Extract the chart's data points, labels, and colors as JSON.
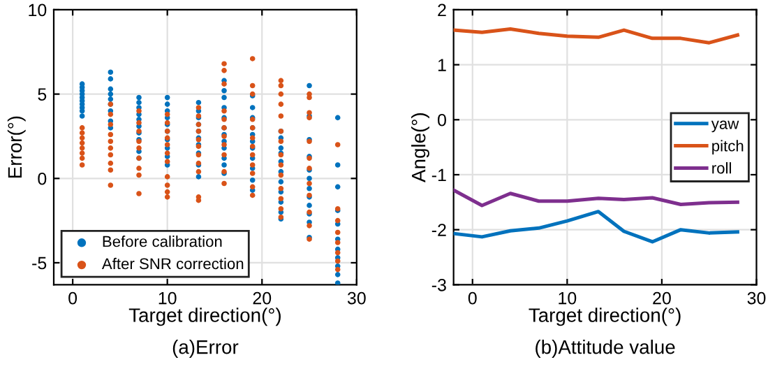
{
  "chart_data": [
    {
      "type": "scatter",
      "xlabel": "Target direction(°)",
      "ylabel": "Error(°)",
      "annotations": [
        "(a)Error"
      ],
      "xlim": [
        -2,
        30
      ],
      "ylim": [
        -6.3,
        10
      ],
      "xticks": [
        0,
        10,
        20,
        30
      ],
      "yticks": [
        -5,
        0,
        5,
        10
      ],
      "grid": true,
      "legend": "bottom left",
      "marker": "circle",
      "series": [
        {
          "name": "Before calibration",
          "color": "#0072bd",
          "x": [
            1,
            1,
            1,
            1,
            1,
            1,
            1,
            1,
            1,
            1,
            4,
            4,
            4,
            4,
            4,
            4,
            4,
            4,
            4,
            7,
            7,
            7,
            7,
            7,
            7,
            7,
            7,
            7,
            7,
            10,
            10,
            10,
            10,
            10,
            10,
            10,
            10,
            10,
            10,
            13.3,
            13.3,
            13.3,
            13.3,
            13.3,
            13.3,
            13.3,
            13.3,
            13.3,
            13.3,
            16,
            16,
            16,
            16,
            16,
            16,
            16,
            16,
            16,
            16,
            16,
            16,
            19,
            19,
            19,
            19,
            19,
            19,
            19,
            19,
            19,
            19,
            19,
            22,
            22,
            22,
            22,
            22,
            22,
            22,
            22,
            22,
            22,
            22,
            25,
            25,
            25,
            25,
            25,
            25,
            25,
            25,
            25,
            25,
            25,
            25,
            28,
            28,
            28,
            28,
            28,
            28,
            28,
            28,
            28,
            28,
            28
          ],
          "values": [
            5.6,
            5.4,
            5.2,
            5.0,
            4.8,
            4.6,
            4.4,
            4.2,
            4.0,
            3.7,
            6.3,
            5.9,
            5.3,
            5.0,
            4.7,
            4.4,
            4.0,
            3.4,
            3.0,
            4.8,
            4.5,
            4.2,
            3.8,
            3.5,
            3.1,
            2.7,
            2.3,
            1.6,
            1.2,
            4.8,
            4.4,
            4.0,
            3.6,
            3.2,
            2.8,
            2.3,
            1.8,
            1.3,
            0.8,
            4.5,
            4.0,
            3.6,
            3.2,
            2.8,
            2.4,
            2.0,
            1.5,
            0.8,
            0.1,
            5.8,
            5.2,
            4.8,
            4.2,
            3.6,
            3.0,
            2.6,
            2.2,
            1.8,
            1.2,
            0.8,
            0.3,
            4.9,
            4.2,
            3.6,
            3.0,
            2.6,
            2.2,
            1.8,
            1.2,
            0.6,
            -0.1,
            -0.7,
            2.8,
            2.4,
            1.8,
            1.5,
            1.0,
            0.4,
            -0.2,
            -0.8,
            -1.4,
            -2.0,
            -2.4,
            5.5,
            3.7,
            2.3,
            1.3,
            0.5,
            0,
            -0.6,
            -1.1,
            -1.6,
            -2.1,
            -2.6,
            -3.5,
            3.6,
            0.8,
            -0.5,
            -1.9,
            -2.7,
            -3.6,
            -4.2,
            -4.7,
            -5.2,
            -5.7,
            -6.2
          ]
        },
        {
          "name": "After SNR correction",
          "color": "#d95319",
          "x": [
            1,
            1,
            1,
            1,
            1,
            1,
            1,
            1,
            4,
            4,
            4,
            4,
            4,
            4,
            4,
            4,
            4,
            4,
            7,
            7,
            7,
            7,
            7,
            7,
            7,
            7,
            7,
            10,
            10,
            10,
            10,
            10,
            10,
            10,
            10,
            10,
            10,
            10,
            13.3,
            13.3,
            13.3,
            13.3,
            13.3,
            13.3,
            13.3,
            13.3,
            13.3,
            13.3,
            13.3,
            16,
            16,
            16,
            16,
            16,
            16,
            16,
            16,
            16,
            16,
            16,
            19,
            19,
            19,
            19,
            19,
            19,
            19,
            19,
            19,
            19,
            19,
            19,
            22,
            22,
            22,
            22,
            22,
            22,
            22,
            22,
            22,
            22,
            22,
            22,
            22,
            22,
            25,
            25,
            25,
            25,
            25,
            25,
            25,
            25,
            25,
            25,
            25,
            25,
            28,
            28,
            28,
            28,
            28,
            28,
            28,
            28
          ],
          "values": [
            3.0,
            2.7,
            2.4,
            2.1,
            1.8,
            1.5,
            1.2,
            0.8,
            4.4,
            3.8,
            3.2,
            2.6,
            2.2,
            1.8,
            1.4,
            0.9,
            0.5,
            -0.4,
            4.0,
            3.3,
            2.8,
            2.2,
            1.8,
            1.2,
            0.6,
            0.2,
            -0.9,
            3.8,
            3.3,
            2.8,
            2.4,
            2.0,
            1.5,
            1.0,
            0.1,
            -0.4,
            -0.8,
            -1.1,
            4.2,
            3.7,
            3.2,
            2.8,
            2.3,
            1.9,
            1.4,
            0.9,
            0.4,
            -1.1,
            -1.3,
            6.8,
            6.4,
            5.6,
            4.0,
            3.5,
            3.0,
            2.5,
            2.0,
            1.4,
            0.4,
            -0.3,
            7.1,
            5.5,
            5.0,
            3.5,
            3.0,
            2.4,
            1.9,
            1.4,
            0.8,
            0.3,
            -0.5,
            -1.0,
            5.8,
            5.5,
            5.0,
            4.4,
            3.7,
            2.8,
            2.2,
            1.4,
            0.8,
            0.2,
            -0.6,
            -1.2,
            -1.8,
            -2.3,
            5.0,
            4.8,
            3.9,
            3.6,
            2.2,
            1.2,
            0.6,
            -0.3,
            -1.0,
            -2.0,
            -2.8,
            -3.6,
            2.0,
            -1.8,
            -2.5,
            -3.2,
            -3.8,
            -4.4,
            -4.9,
            -5.4
          ]
        }
      ]
    },
    {
      "type": "line",
      "xlabel": "Target direction(°)",
      "ylabel": "Angle(°)",
      "annotations": [
        "(b)Attitude value"
      ],
      "xlim": [
        -2,
        30
      ],
      "ylim": [
        -3,
        2
      ],
      "xticks": [
        0,
        10,
        20,
        30
      ],
      "yticks": [
        -3,
        -2,
        -1,
        0,
        1,
        2
      ],
      "grid": true,
      "legend": "right",
      "x": [
        -2,
        1,
        4,
        7,
        10,
        13.3,
        16,
        19,
        22,
        25,
        28
      ],
      "series": [
        {
          "name": "yaw",
          "color": "#0072bd",
          "values": [
            -2.07,
            -2.13,
            -2.02,
            -1.97,
            -1.84,
            -1.67,
            -2.03,
            -2.22,
            -2.0,
            -2.06,
            -2.04
          ]
        },
        {
          "name": "pitch",
          "color": "#d95319",
          "values": [
            1.63,
            1.59,
            1.65,
            1.57,
            1.52,
            1.5,
            1.63,
            1.48,
            1.48,
            1.4,
            1.54
          ]
        },
        {
          "name": "roll",
          "color": "#7e2f8e",
          "values": [
            -1.28,
            -1.56,
            -1.34,
            -1.48,
            -1.48,
            -1.43,
            -1.45,
            -1.42,
            -1.54,
            -1.51,
            -1.5
          ]
        }
      ]
    }
  ]
}
